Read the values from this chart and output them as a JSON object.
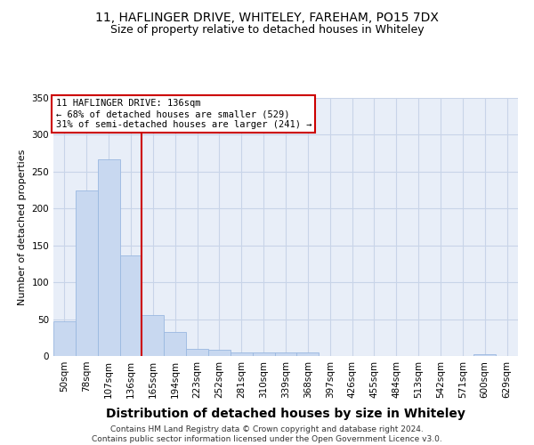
{
  "title1": "11, HAFLINGER DRIVE, WHITELEY, FAREHAM, PO15 7DX",
  "title2": "Size of property relative to detached houses in Whiteley",
  "xlabel": "Distribution of detached houses by size in Whiteley",
  "ylabel": "Number of detached properties",
  "categories": [
    "50sqm",
    "78sqm",
    "107sqm",
    "136sqm",
    "165sqm",
    "194sqm",
    "223sqm",
    "252sqm",
    "281sqm",
    "310sqm",
    "339sqm",
    "368sqm",
    "397sqm",
    "426sqm",
    "455sqm",
    "484sqm",
    "513sqm",
    "542sqm",
    "571sqm",
    "600sqm",
    "629sqm"
  ],
  "values": [
    47,
    224,
    267,
    136,
    55,
    32,
    10,
    8,
    5,
    5,
    5,
    5,
    0,
    0,
    0,
    0,
    0,
    0,
    0,
    3,
    0
  ],
  "bar_color": "#c8d8f0",
  "bar_edge_color": "#9ab8e0",
  "highlight_index": 3,
  "highlight_line_color": "#cc0000",
  "annotation_text": "11 HAFLINGER DRIVE: 136sqm\n← 68% of detached houses are smaller (529)\n31% of semi-detached houses are larger (241) →",
  "annotation_box_color": "#ffffff",
  "annotation_box_edge": "#cc0000",
  "ylim": [
    0,
    350
  ],
  "yticks": [
    0,
    50,
    100,
    150,
    200,
    250,
    300,
    350
  ],
  "grid_color": "#c8d4e8",
  "bg_color": "#e8eef8",
  "footer": "Contains HM Land Registry data © Crown copyright and database right 2024.\nContains public sector information licensed under the Open Government Licence v3.0.",
  "title1_fontsize": 10,
  "title2_fontsize": 9,
  "xlabel_fontsize": 10,
  "ylabel_fontsize": 8,
  "tick_fontsize": 7.5
}
